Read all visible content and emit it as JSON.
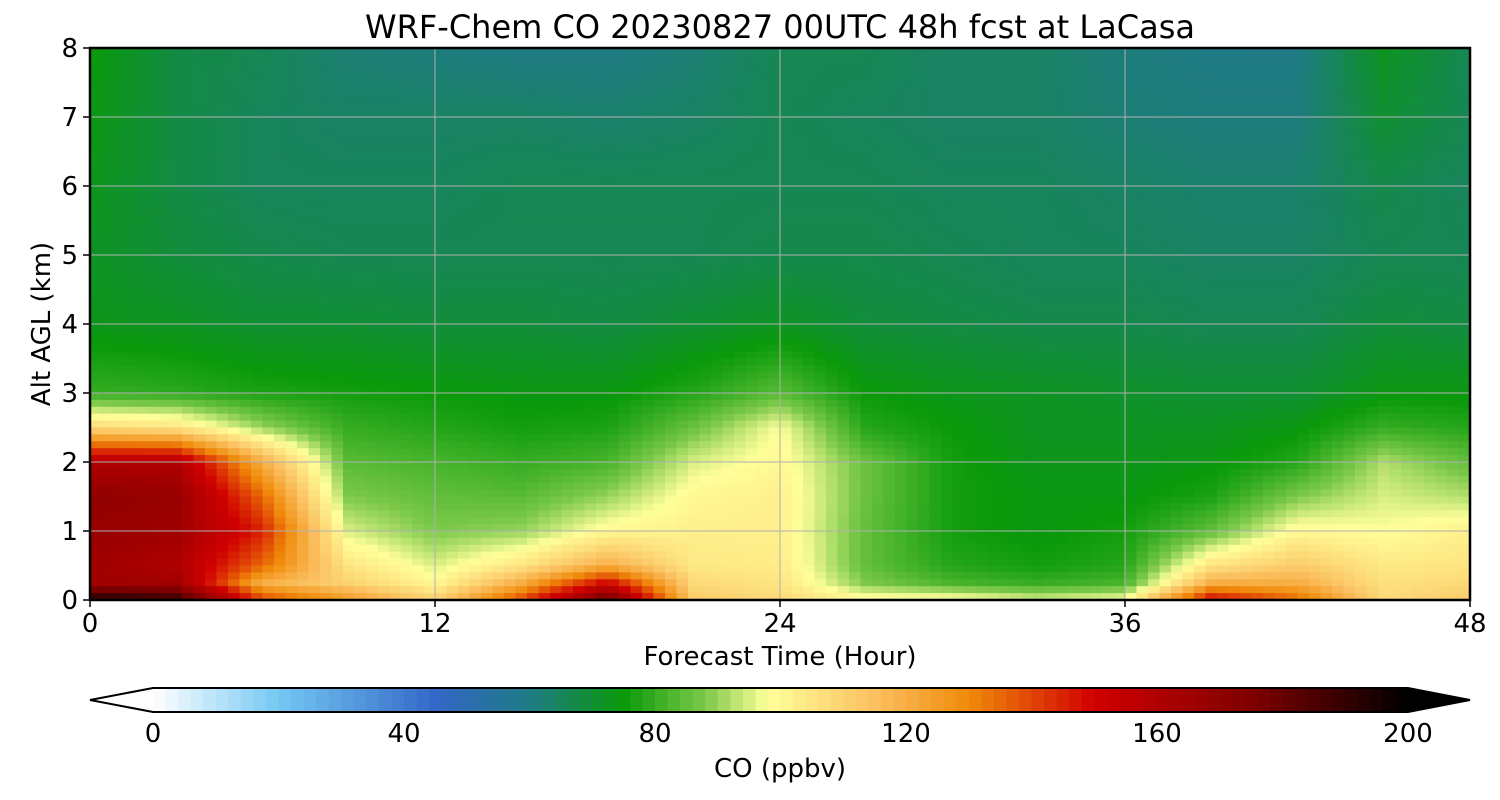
{
  "chart_data": {
    "type": "heatmap",
    "title": "WRF-Chem CO  20230827 00UTC 48h fcst at LaCasa",
    "xlabel": "Forecast Time (Hour)",
    "ylabel": "Alt AGL (km)",
    "xlim": [
      0,
      48
    ],
    "ylim": [
      0,
      8
    ],
    "xticks": [
      0,
      12,
      24,
      36,
      48
    ],
    "yticks": [
      0,
      1,
      2,
      3,
      4,
      5,
      6,
      7,
      8
    ],
    "grid": true,
    "colorbar": {
      "label": "CO  (ppbv)",
      "range": [
        0,
        200
      ],
      "ticks": [
        0,
        40,
        80,
        120,
        160,
        200
      ],
      "extend": "both",
      "orientation": "horizontal",
      "stops": [
        {
          "value": 0,
          "color": "#ffffff"
        },
        {
          "value": 20,
          "color": "#74c8f2"
        },
        {
          "value": 45,
          "color": "#3367c8"
        },
        {
          "value": 60,
          "color": "#1f7a85"
        },
        {
          "value": 75,
          "color": "#0a9a0a"
        },
        {
          "value": 88,
          "color": "#7cc94a"
        },
        {
          "value": 98,
          "color": "#ffff9a"
        },
        {
          "value": 115,
          "color": "#fbc060"
        },
        {
          "value": 130,
          "color": "#f08a0a"
        },
        {
          "value": 150,
          "color": "#d00000"
        },
        {
          "value": 175,
          "color": "#800000"
        },
        {
          "value": 200,
          "color": "#000000"
        }
      ]
    },
    "x": [
      0,
      3,
      6,
      9,
      12,
      15,
      18,
      21,
      24,
      27,
      30,
      33,
      36,
      39,
      42,
      45,
      48
    ],
    "y": [
      0,
      0.25,
      0.5,
      1,
      1.5,
      2,
      2.5,
      3,
      4,
      5,
      6,
      7,
      8
    ],
    "z": [
      [
        195,
        190,
        140,
        125,
        110,
        140,
        180,
        112,
        108,
        100,
        100,
        95,
        98,
        150,
        135,
        108,
        112
      ],
      [
        165,
        165,
        120,
        110,
        100,
        120,
        150,
        108,
        105,
        88,
        82,
        80,
        82,
        120,
        120,
        106,
        108
      ],
      [
        165,
        160,
        135,
        105,
        95,
        105,
        120,
        104,
        103,
        85,
        78,
        76,
        78,
        105,
        112,
        104,
        105
      ],
      [
        168,
        165,
        145,
        95,
        88,
        90,
        100,
        102,
        102,
        85,
        76,
        74,
        76,
        85,
        100,
        98,
        102
      ],
      [
        170,
        168,
        135,
        88,
        85,
        84,
        90,
        100,
        102,
        86,
        76,
        74,
        74,
        77,
        88,
        95,
        92
      ],
      [
        160,
        160,
        120,
        84,
        82,
        80,
        82,
        95,
        100,
        86,
        76,
        73,
        73,
        74,
        78,
        92,
        85
      ],
      [
        108,
        105,
        90,
        80,
        78,
        76,
        77,
        86,
        98,
        78,
        75,
        72,
        72,
        72,
        74,
        80,
        78
      ],
      [
        80,
        79,
        77,
        76,
        75,
        74,
        74,
        78,
        84,
        75,
        73,
        72,
        71,
        70,
        70,
        74,
        74
      ],
      [
        73,
        72,
        70,
        70,
        69,
        69,
        68,
        70,
        72,
        69,
        68,
        67,
        67,
        66,
        66,
        69,
        68
      ],
      [
        72,
        69,
        67,
        66,
        66,
        66,
        66,
        66,
        67,
        67,
        66,
        65,
        65,
        64,
        64,
        66,
        66
      ],
      [
        73,
        68,
        65,
        65,
        65,
        66,
        66,
        66,
        66,
        66,
        65,
        65,
        64,
        63,
        63,
        67,
        65
      ],
      [
        74,
        68,
        65,
        64,
        64,
        64,
        63,
        64,
        66,
        65,
        64,
        64,
        62,
        61,
        61,
        70,
        66
      ],
      [
        75,
        68,
        66,
        62,
        61,
        60,
        60,
        62,
        66,
        66,
        64,
        64,
        61,
        60,
        60,
        72,
        66
      ]
    ]
  }
}
